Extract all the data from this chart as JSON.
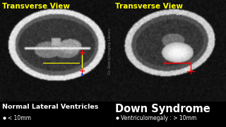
{
  "background_color": "#000000",
  "left_panel": {
    "title": "Transverse View",
    "title_color": "#ffff00",
    "title_fontsize": 7.5,
    "label": "Normal Lateral Ventricles",
    "label_color": "#ffffff",
    "label_fontsize": 6.8,
    "label_bold": true,
    "bullet_text": "< 10mm",
    "bullet_color": "#ffffff",
    "bullet_fontsize": 5.5,
    "line_color": "#ffff00",
    "marker_color": "#ff0000"
  },
  "right_panel": {
    "title": "Transverse View",
    "title_color": "#ffff00",
    "title_fontsize": 7.5,
    "label": "Down Syndrome",
    "label_color": "#ffffff",
    "label_fontsize": 10.5,
    "label_bold": true,
    "bullet_text": "Ventriculomegaly : > 10mm",
    "bullet_color": "#ffffff",
    "bullet_fontsize": 5.5,
    "line_color": "#ff0000",
    "marker_color": "#ff0000"
  },
  "watermark": "Dr. Neeraj Imaging Library",
  "watermark_color": "#999999",
  "watermark_fontsize": 3.5
}
